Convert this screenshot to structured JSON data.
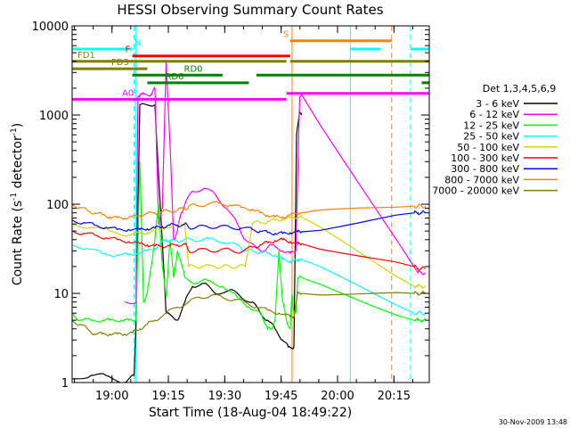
{
  "chart_data": {
    "type": "line",
    "title": "HESSI Observing Summary Count Rates",
    "xlabel": "Start Time (18-Aug-04 18:49:22)",
    "ylabel_main": "Count Rate (s",
    "ylabel_sup1": "-1",
    "ylabel_mid": " detector",
    "ylabel_sup2": "-1",
    "ylabel_end": ")",
    "footer": "30-Nov-2009 13:48",
    "xlim": [
      0,
      95
    ],
    "x_unit": "minutes after 18:49:22",
    "ylim": [
      1,
      10000
    ],
    "yscale": "log",
    "x_ticks": [
      {
        "x": 10.6,
        "label": "19:00"
      },
      {
        "x": 25.6,
        "label": "19:15"
      },
      {
        "x": 40.6,
        "label": "19:30"
      },
      {
        "x": 55.6,
        "label": "19:45"
      },
      {
        "x": 70.6,
        "label": "20:00"
      },
      {
        "x": 85.6,
        "label": "20:15"
      }
    ],
    "y_ticks": [
      {
        "y": 1,
        "label": "1"
      },
      {
        "y": 10,
        "label": "10"
      },
      {
        "y": 100,
        "label": "100"
      },
      {
        "y": 1000,
        "label": "1000"
      },
      {
        "y": 10000,
        "label": "10000"
      }
    ],
    "legend_title": "Det 1,3,4,5,6,9",
    "legend_placement": "right",
    "series": [
      {
        "name": "3 - 6 keV",
        "color": "#000000",
        "x": [
          0,
          5,
          9,
          14,
          16.5,
          17,
          18,
          22,
          25,
          28,
          30,
          32,
          35,
          38,
          42,
          45,
          48,
          50,
          52,
          54,
          56,
          57.5,
          59,
          59.7,
          60.5,
          61
        ],
        "y": [
          1.1,
          1.2,
          1.2,
          1,
          1.2,
          5,
          1300,
          1300,
          6,
          5,
          8,
          12,
          13,
          10,
          11,
          9,
          8,
          6,
          5,
          4,
          3,
          2.5,
          2.5,
          600,
          1100,
          1000
        ]
      },
      {
        "name": "6 - 12 keV",
        "color": "#ff00ff",
        "x": [
          14,
          17,
          17.5,
          18,
          19,
          21,
          22,
          23,
          24,
          25,
          26,
          27,
          28,
          29,
          30,
          32,
          35,
          38,
          41,
          44,
          46,
          49,
          51,
          53,
          56,
          58,
          59.5,
          60.5,
          61,
          92,
          93,
          94
        ],
        "y": [
          8,
          8,
          1600,
          1700,
          1700,
          1700,
          2000,
          60,
          90,
          4000,
          500,
          40,
          50,
          80,
          100,
          140,
          150,
          130,
          90,
          60,
          40,
          32,
          30,
          35,
          30,
          28,
          30,
          1500,
          1700,
          17,
          17,
          17
        ]
      },
      {
        "name": "12 - 25 keV",
        "color": "#00ff00",
        "x": [
          0,
          2,
          5,
          8,
          10,
          13,
          15,
          17,
          18,
          19,
          20,
          21,
          22,
          23,
          24,
          25,
          26,
          27,
          28,
          30,
          33,
          36,
          40,
          44,
          47,
          50,
          51,
          52,
          53,
          54,
          55,
          56,
          57,
          58,
          58.5,
          59,
          59.5,
          60,
          61,
          91,
          92,
          93,
          94
        ],
        "y": [
          6,
          5,
          5,
          5,
          5,
          5,
          5,
          5,
          300,
          8,
          10,
          20,
          40,
          100,
          20,
          9,
          40,
          15,
          30,
          15,
          13,
          14,
          12,
          9,
          7,
          6,
          5,
          4,
          4,
          5,
          30,
          8,
          5,
          4,
          10,
          6,
          6,
          15,
          15,
          5,
          5,
          5,
          5
        ]
      },
      {
        "name": "25 - 50 keV",
        "color": "#00ffff",
        "x": [
          0,
          4,
          8,
          12,
          15,
          17,
          20,
          22,
          24,
          25,
          26,
          28,
          30,
          32,
          35,
          38,
          42,
          45,
          46,
          48,
          50,
          52,
          54,
          56,
          58,
          59,
          60,
          61,
          91,
          92,
          93,
          94
        ],
        "y": [
          35,
          32,
          28,
          27,
          27,
          28,
          30,
          32,
          38,
          40,
          38,
          39,
          40,
          40,
          40,
          40,
          37,
          32,
          30,
          30,
          29,
          28,
          27,
          24,
          23,
          23,
          24,
          24,
          6,
          6,
          6,
          6
        ]
      },
      {
        "name": "50 - 100 keV",
        "color": "#d4d400",
        "x": [
          0,
          5,
          10,
          15,
          18,
          20,
          22,
          25,
          28,
          30,
          31,
          33,
          35,
          38,
          40,
          42,
          44,
          46,
          48,
          50,
          52,
          54,
          56,
          58,
          60,
          61,
          91,
          92,
          93,
          94
        ],
        "y": [
          60,
          55,
          50,
          45,
          47,
          48,
          50,
          55,
          58,
          60,
          20,
          20,
          20,
          20,
          20,
          20,
          20,
          20,
          62,
          62,
          64,
          66,
          68,
          70,
          72,
          72,
          12,
          12,
          12,
          12
        ]
      },
      {
        "name": "100 - 300 keV",
        "color": "#ff0000",
        "x": [
          0,
          3,
          6,
          9,
          12,
          15,
          18,
          20,
          22,
          24,
          26,
          28,
          30,
          31,
          33,
          36,
          39,
          42,
          45,
          48,
          50,
          52,
          54,
          56,
          58,
          60,
          61,
          91,
          92,
          93,
          94
        ],
        "y": [
          50,
          47,
          45,
          42,
          40,
          38,
          36,
          35,
          34,
          34,
          34,
          35,
          36,
          30,
          30,
          31,
          30,
          31,
          29,
          33,
          35,
          37,
          39,
          40,
          38,
          36,
          36,
          20,
          19,
          19,
          19
        ]
      },
      {
        "name": "300 - 800 keV",
        "color": "#0000ff",
        "x": [
          0,
          3,
          6,
          9,
          12,
          15,
          18,
          20,
          22,
          24,
          26,
          28,
          30,
          31,
          33,
          36,
          39,
          42,
          45,
          48,
          50,
          52,
          54,
          56,
          58,
          60,
          61,
          91,
          92,
          93,
          94
        ],
        "y": [
          66,
          62,
          58,
          55,
          52,
          52,
          52,
          53,
          54,
          56,
          58,
          58,
          60,
          55,
          55,
          56,
          56,
          55,
          54,
          52,
          50,
          48,
          47,
          47,
          48,
          49,
          49,
          80,
          80,
          80,
          80
        ]
      },
      {
        "name": "800 - 7000 keV",
        "color": "#ff8000",
        "x": [
          0,
          2,
          4,
          6,
          8,
          10,
          12,
          14,
          16,
          18,
          20,
          22,
          24,
          26,
          28,
          30,
          31,
          33,
          36,
          39,
          42,
          45,
          48,
          50,
          52,
          54,
          56,
          58,
          60,
          61,
          91,
          92,
          93,
          94
        ],
        "y": [
          100,
          92,
          85,
          80,
          76,
          72,
          70,
          70,
          72,
          75,
          78,
          80,
          82,
          84,
          86,
          88,
          95,
          97,
          100,
          103,
          98,
          92,
          88,
          80,
          75,
          72,
          72,
          75,
          80,
          80,
          95,
          95,
          95,
          95
        ]
      },
      {
        "name": "7000 - 20000 keV",
        "color": "#808000",
        "x": [
          0,
          2,
          4,
          6,
          8,
          10,
          12,
          14,
          16,
          18,
          20,
          22,
          25,
          28,
          31,
          34,
          37,
          40,
          43,
          46,
          49,
          52,
          55,
          58,
          59,
          60,
          61,
          91,
          92,
          93,
          94
        ],
        "y": [
          5,
          4.5,
          4,
          3.5,
          3.5,
          3.5,
          3.5,
          3.5,
          3.6,
          4,
          4.5,
          5,
          6,
          7,
          8,
          9,
          9.5,
          9,
          8.5,
          8,
          7,
          6.5,
          6,
          5.5,
          5.5,
          10,
          10,
          10,
          10,
          10,
          10
        ]
      }
    ],
    "state_bars": [
      {
        "label": "N",
        "color": "#00ffff",
        "y": 5500,
        "segments": [
          [
            0,
            16
          ],
          [
            74,
            82
          ],
          [
            90,
            95
          ]
        ]
      },
      {
        "label": "S",
        "color": "#ff8000",
        "y": 6800,
        "segments": [
          [
            58,
            85
          ]
        ]
      },
      {
        "label": "F",
        "color": "#ff0000",
        "y": 4600,
        "segments": [
          [
            16,
            58
          ]
        ]
      },
      {
        "label": "FD1",
        "color": "#808000",
        "y": 4000,
        "segments": [
          [
            0,
            57
          ],
          [
            58,
            95
          ]
        ]
      },
      {
        "label": "FD3",
        "color": "#808000",
        "y": 3300,
        "segments": [
          [
            0,
            16
          ],
          [
            16,
            20
          ]
        ]
      },
      {
        "label": "RD0",
        "color": "#008000",
        "y": 2800,
        "segments": [
          [
            16,
            40
          ],
          [
            49,
            95
          ]
        ]
      },
      {
        "label": "RD6",
        "color": "#008000",
        "y": 2300,
        "segments": [
          [
            20,
            47
          ],
          [
            93,
            95
          ]
        ]
      },
      {
        "label": "A0",
        "color": "#ff00ff",
        "y": 1500,
        "segments": [
          [
            0,
            57
          ]
        ]
      },
      {
        "label": "",
        "color": "#ff00ff",
        "y": 1750,
        "segments": [
          [
            57,
            95
          ]
        ]
      }
    ],
    "vlines": [
      {
        "x": 17,
        "color": "#00ffff",
        "style": "solid"
      },
      {
        "x": 16.5,
        "color": "#00ffff",
        "style": "dashed"
      },
      {
        "x": 58.5,
        "color": "#ff8000",
        "style": "solid"
      },
      {
        "x": 74,
        "color": "#00ffff",
        "style": "solid"
      },
      {
        "x": 85,
        "color": "#ff8000",
        "style": "dashed"
      },
      {
        "x": 90,
        "color": "#00ffff",
        "style": "dashed"
      }
    ]
  }
}
